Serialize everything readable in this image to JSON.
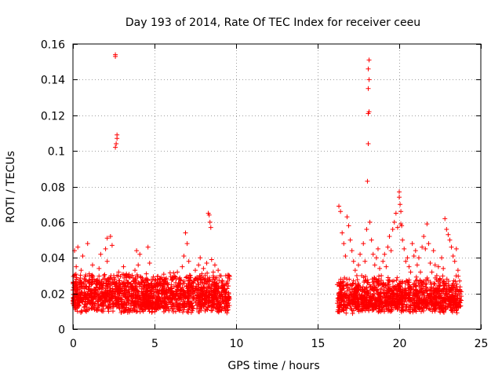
{
  "chart_data": {
    "type": "scatter",
    "title": "Day 193 of 2014, Rate Of TEC Index for receiver ceeu",
    "xlabel": "GPS time / hours",
    "ylabel": "ROTI / TECUs",
    "xlim": [
      0,
      25
    ],
    "ylim": [
      0,
      0.16
    ],
    "xticks": [
      0,
      5,
      10,
      15,
      20,
      25
    ],
    "xtick_labels": [
      "0",
      "5",
      "10",
      "15",
      "20",
      "25"
    ],
    "yticks": [
      0,
      0.02,
      0.04,
      0.06,
      0.08,
      0.1,
      0.12,
      0.14,
      0.16
    ],
    "ytick_labels": [
      "0",
      "0.02",
      "0.04",
      "0.06",
      "0.08",
      "0.1",
      "0.12",
      "0.14",
      "0.16"
    ],
    "grid": true,
    "marker": "plus",
    "color": "#ff0000",
    "series": [
      {
        "name": "ROTI",
        "points": [
          [
            0.0,
            0.022
          ],
          [
            0.1,
            0.03
          ],
          [
            0.1,
            0.044
          ],
          [
            0.2,
            0.028
          ],
          [
            0.2,
            0.035
          ],
          [
            0.3,
            0.046
          ],
          [
            0.3,
            0.018
          ],
          [
            0.4,
            0.025
          ],
          [
            0.5,
            0.033
          ],
          [
            0.6,
            0.041
          ],
          [
            0.7,
            0.019
          ],
          [
            0.8,
            0.027
          ],
          [
            0.9,
            0.048
          ],
          [
            1.0,
            0.031
          ],
          [
            1.0,
            0.015
          ],
          [
            1.1,
            0.022
          ],
          [
            1.2,
            0.036
          ],
          [
            1.3,
            0.028
          ],
          [
            1.4,
            0.012
          ],
          [
            1.5,
            0.025
          ],
          [
            1.6,
            0.034
          ],
          [
            1.7,
            0.042
          ],
          [
            1.8,
            0.02
          ],
          [
            1.9,
            0.03
          ],
          [
            2.0,
            0.045
          ],
          [
            2.1,
            0.051
          ],
          [
            2.1,
            0.038
          ],
          [
            2.2,
            0.026
          ],
          [
            2.3,
            0.052
          ],
          [
            2.4,
            0.047
          ],
          [
            2.5,
            0.03
          ],
          [
            2.6,
            0.154
          ],
          [
            2.6,
            0.153
          ],
          [
            2.6,
            0.102
          ],
          [
            2.65,
            0.104
          ],
          [
            2.7,
            0.109
          ],
          [
            2.7,
            0.107
          ],
          [
            2.8,
            0.032
          ],
          [
            2.9,
            0.021
          ],
          [
            3.0,
            0.026
          ],
          [
            3.1,
            0.035
          ],
          [
            3.2,
            0.018
          ],
          [
            3.3,
            0.03
          ],
          [
            3.4,
            0.024
          ],
          [
            3.5,
            0.029
          ],
          [
            3.6,
            0.016
          ],
          [
            3.7,
            0.027
          ],
          [
            3.8,
            0.033
          ],
          [
            3.9,
            0.044
          ],
          [
            4.0,
            0.036
          ],
          [
            4.1,
            0.042
          ],
          [
            4.2,
            0.021
          ],
          [
            4.3,
            0.014
          ],
          [
            4.4,
            0.025
          ],
          [
            4.5,
            0.031
          ],
          [
            4.6,
            0.046
          ],
          [
            4.7,
            0.037
          ],
          [
            4.8,
            0.02
          ],
          [
            4.9,
            0.012
          ],
          [
            5.0,
            0.024
          ],
          [
            5.1,
            0.018
          ],
          [
            5.2,
            0.026
          ],
          [
            5.3,
            0.022
          ],
          [
            5.4,
            0.015
          ],
          [
            5.5,
            0.02
          ],
          [
            5.6,
            0.027
          ],
          [
            5.7,
            0.021
          ],
          [
            5.8,
            0.025
          ],
          [
            5.9,
            0.017
          ],
          [
            6.0,
            0.023
          ],
          [
            6.1,
            0.029
          ],
          [
            6.2,
            0.019
          ],
          [
            6.3,
            0.026
          ],
          [
            6.4,
            0.032
          ],
          [
            6.5,
            0.028
          ],
          [
            6.6,
            0.022
          ],
          [
            6.7,
            0.035
          ],
          [
            6.8,
            0.041
          ],
          [
            6.9,
            0.054
          ],
          [
            7.0,
            0.048
          ],
          [
            7.1,
            0.038
          ],
          [
            7.2,
            0.03
          ],
          [
            7.3,
            0.024
          ],
          [
            7.4,
            0.027
          ],
          [
            7.5,
            0.033
          ],
          [
            7.6,
            0.029
          ],
          [
            7.7,
            0.036
          ],
          [
            7.8,
            0.04
          ],
          [
            7.9,
            0.031
          ],
          [
            8.0,
            0.034
          ],
          [
            8.1,
            0.03
          ],
          [
            8.2,
            0.037
          ],
          [
            8.3,
            0.065
          ],
          [
            8.35,
            0.064
          ],
          [
            8.4,
            0.06
          ],
          [
            8.45,
            0.057
          ],
          [
            8.5,
            0.039
          ],
          [
            8.6,
            0.032
          ],
          [
            8.7,
            0.036
          ],
          [
            8.8,
            0.029
          ],
          [
            8.9,
            0.033
          ],
          [
            9.0,
            0.03
          ],
          [
            9.1,
            0.026
          ],
          [
            9.2,
            0.022
          ],
          [
            9.3,
            0.018
          ],
          [
            9.4,
            0.015
          ],
          [
            9.5,
            0.012
          ],
          [
            16.2,
            0.025
          ],
          [
            16.3,
            0.069
          ],
          [
            16.4,
            0.066
          ],
          [
            16.5,
            0.054
          ],
          [
            16.6,
            0.048
          ],
          [
            16.7,
            0.041
          ],
          [
            16.8,
            0.063
          ],
          [
            16.9,
            0.058
          ],
          [
            17.0,
            0.05
          ],
          [
            17.1,
            0.044
          ],
          [
            17.2,
            0.038
          ],
          [
            17.3,
            0.033
          ],
          [
            17.4,
            0.03
          ],
          [
            17.5,
            0.036
          ],
          [
            17.6,
            0.042
          ],
          [
            17.7,
            0.03
          ],
          [
            17.8,
            0.048
          ],
          [
            17.9,
            0.038
          ],
          [
            18.0,
            0.056
          ],
          [
            18.05,
            0.083
          ],
          [
            18.1,
            0.104
          ],
          [
            18.1,
            0.121
          ],
          [
            18.15,
            0.122
          ],
          [
            18.1,
            0.135
          ],
          [
            18.15,
            0.14
          ],
          [
            18.1,
            0.146
          ],
          [
            18.15,
            0.151
          ],
          [
            18.2,
            0.06
          ],
          [
            18.3,
            0.05
          ],
          [
            18.4,
            0.042
          ],
          [
            18.5,
            0.036
          ],
          [
            18.6,
            0.04
          ],
          [
            18.7,
            0.045
          ],
          [
            18.8,
            0.034
          ],
          [
            18.9,
            0.03
          ],
          [
            19.0,
            0.038
          ],
          [
            19.1,
            0.042
          ],
          [
            19.2,
            0.035
          ],
          [
            19.3,
            0.046
          ],
          [
            19.4,
            0.052
          ],
          [
            19.5,
            0.044
          ],
          [
            19.6,
            0.056
          ],
          [
            19.7,
            0.06
          ],
          [
            19.8,
            0.065
          ],
          [
            19.9,
            0.057
          ],
          [
            20.0,
            0.077
          ],
          [
            20.0,
            0.074
          ],
          [
            20.05,
            0.07
          ],
          [
            20.1,
            0.066
          ],
          [
            20.1,
            0.059
          ],
          [
            20.15,
            0.058
          ],
          [
            20.2,
            0.05
          ],
          [
            20.3,
            0.045
          ],
          [
            20.4,
            0.038
          ],
          [
            20.5,
            0.04
          ],
          [
            20.6,
            0.035
          ],
          [
            20.7,
            0.032
          ],
          [
            20.8,
            0.048
          ],
          [
            20.9,
            0.041
          ],
          [
            21.0,
            0.044
          ],
          [
            21.1,
            0.036
          ],
          [
            21.2,
            0.04
          ],
          [
            21.3,
            0.032
          ],
          [
            21.4,
            0.046
          ],
          [
            21.5,
            0.052
          ],
          [
            21.6,
            0.045
          ],
          [
            21.7,
            0.059
          ],
          [
            21.8,
            0.048
          ],
          [
            21.9,
            0.037
          ],
          [
            22.0,
            0.032
          ],
          [
            22.1,
            0.044
          ],
          [
            22.2,
            0.036
          ],
          [
            22.3,
            0.03
          ],
          [
            22.4,
            0.035
          ],
          [
            22.5,
            0.028
          ],
          [
            22.6,
            0.04
          ],
          [
            22.7,
            0.034
          ],
          [
            22.8,
            0.062
          ],
          [
            22.9,
            0.056
          ],
          [
            23.0,
            0.053
          ],
          [
            23.1,
            0.05
          ],
          [
            23.2,
            0.046
          ],
          [
            23.3,
            0.041
          ],
          [
            23.4,
            0.038
          ],
          [
            23.5,
            0.045
          ],
          [
            23.6,
            0.033
          ],
          [
            23.7,
            0.027
          ],
          [
            23.8,
            0.021
          ]
        ]
      }
    ],
    "dense_band": [
      {
        "x_start": 0.0,
        "x_end": 9.6,
        "y_low": 0.005,
        "y_high": 0.032
      },
      {
        "x_start": 16.2,
        "x_end": 23.8,
        "y_low": 0.005,
        "y_high": 0.03
      }
    ]
  }
}
